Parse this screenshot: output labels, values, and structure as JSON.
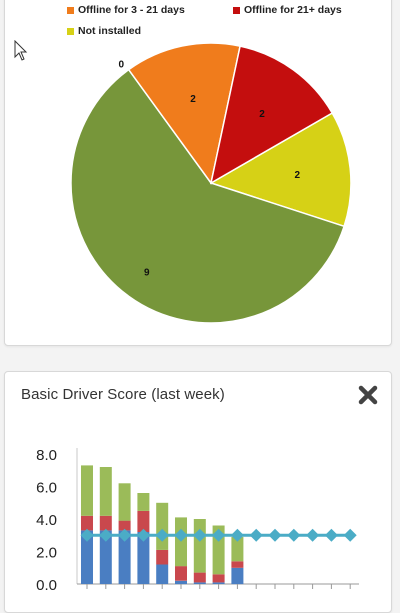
{
  "pie_card": {
    "legend": [
      {
        "label": "Offline for 3 - 21 days",
        "color": "#f07c1c"
      },
      {
        "label": "Offline for 21+ days",
        "color": "#c40e0e"
      },
      {
        "label": "Not installed",
        "color": "#d6d116"
      }
    ]
  },
  "bar_card": {
    "title": "Basic Driver Score (last week)",
    "close_icon": "close-x-icon"
  },
  "chart_data": [
    {
      "type": "pie",
      "slices": [
        {
          "label": "Not installed",
          "value": 2,
          "color": "#d6d116",
          "data_label": "2"
        },
        {
          "label": "",
          "value": 9,
          "color": "#77963a",
          "data_label": "9"
        },
        {
          "label": "",
          "value": 0,
          "color": "#3f6fc4",
          "data_label": "0"
        },
        {
          "label": "Offline for 3 - 21 days",
          "value": 2,
          "color": "#f07c1c",
          "data_label": "2"
        },
        {
          "label": "Offline for 21+ days",
          "value": 2,
          "color": "#c40e0e",
          "data_label": "2"
        }
      ]
    },
    {
      "type": "bar",
      "stacked": true,
      "categories": [
        "",
        "",
        "",
        "",
        "",
        "",
        "",
        "",
        "",
        "",
        "",
        "",
        "",
        "",
        ""
      ],
      "ylim": [
        0,
        8
      ],
      "yticks": [
        "0.0",
        "2.0",
        "4.0",
        "6.0",
        "8.0"
      ],
      "grid": false,
      "series": [
        {
          "values": [
            3.3,
            3.3,
            3.3,
            3.2,
            1.2,
            0.2,
            0.1,
            0.1,
            1.0,
            0,
            0,
            0,
            0,
            0,
            0
          ],
          "color": "#4a7ec2"
        },
        {
          "values": [
            0.9,
            0.9,
            0.6,
            1.3,
            0.9,
            0.9,
            0.6,
            0.5,
            0.4,
            0,
            0,
            0,
            0,
            0,
            0
          ],
          "color": "#c9484d"
        },
        {
          "values": [
            3.1,
            3.0,
            2.3,
            1.1,
            2.9,
            3.0,
            3.3,
            3.0,
            1.5,
            0,
            0,
            0,
            0,
            0,
            0
          ],
          "color": "#9bbb59"
        }
      ],
      "line": {
        "values": [
          3.0,
          3.0,
          3.0,
          3.0,
          3.0,
          3.0,
          3.0,
          3.0,
          3.0,
          3.0,
          3.0,
          3.0,
          3.0,
          3.0,
          3.0
        ],
        "color": "#4bacc6"
      }
    }
  ]
}
